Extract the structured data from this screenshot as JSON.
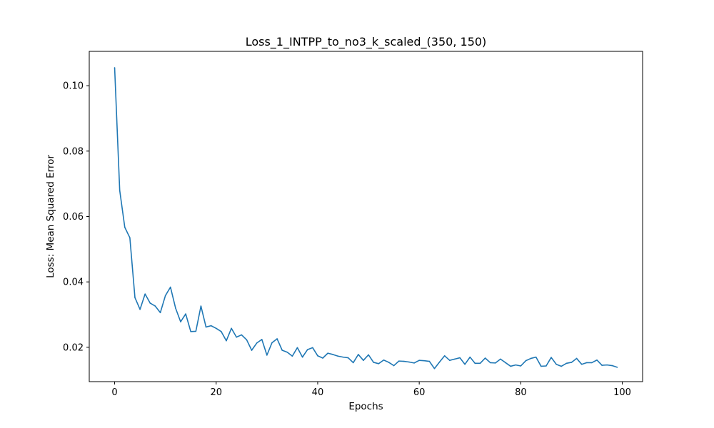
{
  "chart_data": {
    "type": "line",
    "title": "Loss_1_INTPP_to_no3_k_scaled_(350, 150)",
    "xlabel": "Epochs",
    "ylabel": "Loss: Mean Squared Error",
    "xlim": [
      -5,
      104
    ],
    "ylim": [
      0.0095,
      0.1105
    ],
    "x_ticks": [
      0,
      20,
      40,
      60,
      80,
      100
    ],
    "x_tick_labels": [
      "0",
      "20",
      "40",
      "60",
      "80",
      "100"
    ],
    "y_ticks": [
      0.02,
      0.04,
      0.06,
      0.08,
      0.1
    ],
    "y_tick_labels": [
      "0.02",
      "0.04",
      "0.06",
      "0.08",
      "0.10"
    ],
    "grid": false,
    "line_color": "#1f77b4",
    "series": [
      {
        "x": [
          0,
          1,
          2,
          3,
          4,
          5,
          6,
          7,
          8,
          9,
          10,
          11,
          12,
          13,
          14,
          15,
          16,
          17,
          18,
          19,
          20,
          21,
          22,
          23,
          24,
          25,
          26,
          27,
          28,
          29,
          30,
          31,
          32,
          33,
          34,
          35,
          36,
          37,
          38,
          39,
          40,
          41,
          42,
          43,
          44,
          45,
          46,
          47,
          48,
          49,
          50,
          51,
          52,
          53,
          54,
          55,
          56,
          57,
          58,
          59,
          60,
          61,
          62,
          63,
          64,
          65,
          66,
          67,
          68,
          69,
          70,
          71,
          72,
          73,
          74,
          75,
          76,
          77,
          78,
          79,
          80,
          81,
          82,
          83,
          84,
          85,
          86,
          87,
          88,
          89,
          90,
          91,
          92,
          93,
          94,
          95,
          96,
          97,
          98,
          99
        ],
        "values": [
          0.1055,
          0.068,
          0.0567,
          0.0535,
          0.0352,
          0.0316,
          0.0363,
          0.0335,
          0.0326,
          0.0306,
          0.0358,
          0.0384,
          0.032,
          0.0278,
          0.0302,
          0.0248,
          0.0249,
          0.0326,
          0.0262,
          0.0266,
          0.0258,
          0.0248,
          0.022,
          0.0258,
          0.0231,
          0.0238,
          0.0223,
          0.0191,
          0.0213,
          0.0224,
          0.0176,
          0.0214,
          0.0226,
          0.0191,
          0.0185,
          0.0173,
          0.0199,
          0.017,
          0.0193,
          0.0199,
          0.0174,
          0.0167,
          0.0182,
          0.0178,
          0.0173,
          0.017,
          0.0168,
          0.0153,
          0.0178,
          0.016,
          0.0177,
          0.0154,
          0.015,
          0.0161,
          0.0154,
          0.0144,
          0.0158,
          0.0157,
          0.0155,
          0.0152,
          0.016,
          0.0159,
          0.0157,
          0.0135,
          0.0155,
          0.0174,
          0.016,
          0.0164,
          0.0168,
          0.0148,
          0.017,
          0.0151,
          0.0151,
          0.0167,
          0.0153,
          0.0152,
          0.0164,
          0.0153,
          0.0142,
          0.0146,
          0.0143,
          0.0159,
          0.0166,
          0.017,
          0.0142,
          0.0143,
          0.0169,
          0.0148,
          0.0142,
          0.0151,
          0.0154,
          0.0166,
          0.0148,
          0.0153,
          0.0153,
          0.0161,
          0.0145,
          0.0146,
          0.0144,
          0.0139
        ]
      }
    ]
  }
}
